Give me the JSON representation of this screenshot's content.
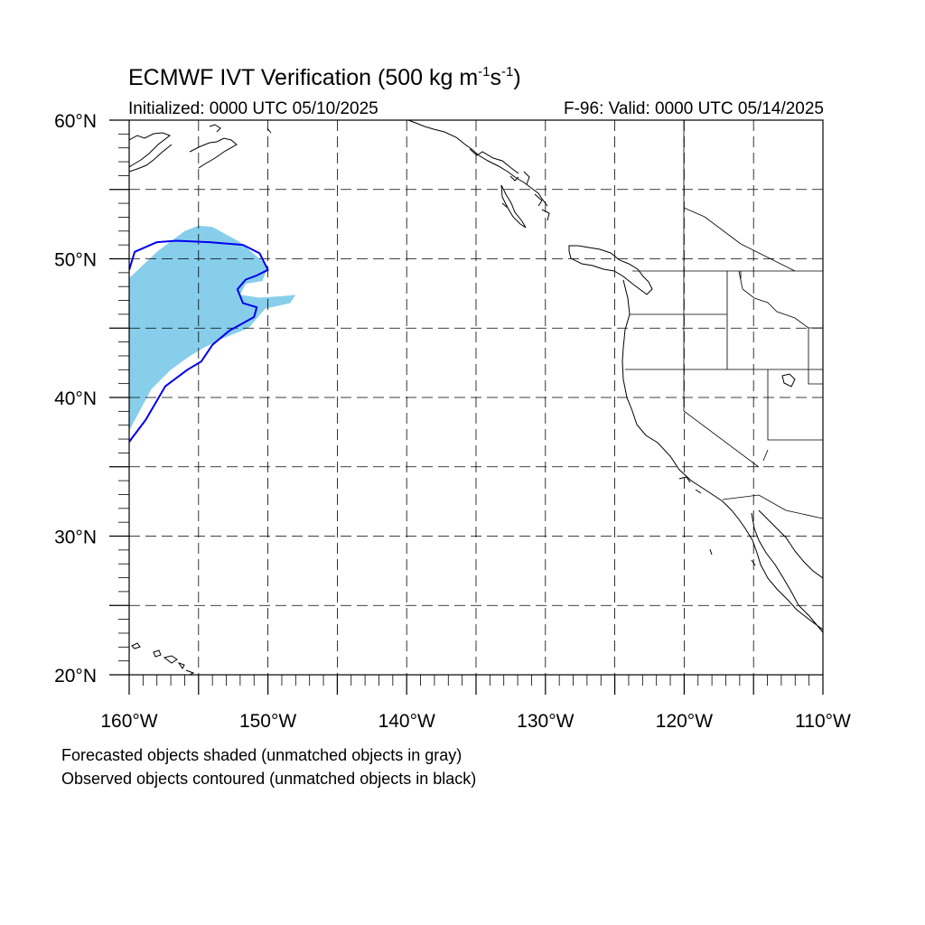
{
  "header": {
    "title_main": "ECMWF IVT Verification (500 kg m",
    "title_exp1": "-1",
    "title_mid": "s",
    "title_exp2": "-1",
    "title_end": ")",
    "initialized": "Initialized: 0000 UTC 05/10/2025",
    "valid": "F-96: Valid: 0000 UTC 05/14/2025"
  },
  "map": {
    "projection": "cylindrical-equidistant",
    "lon_range": [
      -160,
      -110
    ],
    "lat_range": [
      20,
      60
    ],
    "grid": "dashed every 5 degrees",
    "lat_labels": [
      "60°N",
      "50°N",
      "40°N",
      "30°N",
      "20°N"
    ],
    "lon_labels": [
      "160°W",
      "150°W",
      "140°W",
      "130°W",
      "120°W",
      "110°W"
    ],
    "forecast_color": "#87ceeb",
    "observed_color": "#0000ee",
    "forecast_object": [
      [
        -160,
        48.6
      ],
      [
        -158,
        50.5
      ],
      [
        -156,
        52
      ],
      [
        -155,
        52.4
      ],
      [
        -154,
        52.3
      ],
      [
        -152,
        51.2
      ],
      [
        -150.6,
        50
      ],
      [
        -150,
        49.5
      ],
      [
        -150.4,
        48.4
      ],
      [
        -151.6,
        48.2
      ],
      [
        -152,
        47.4
      ],
      [
        -150.6,
        47.2
      ],
      [
        -149,
        47.3
      ],
      [
        -148,
        47.4
      ],
      [
        -148.4,
        46.8
      ],
      [
        -150.2,
        46.4
      ],
      [
        -151.4,
        45
      ],
      [
        -153.4,
        44.2
      ],
      [
        -154.6,
        43.6
      ],
      [
        -155.6,
        43
      ],
      [
        -157,
        42
      ],
      [
        -158.4,
        40.6
      ],
      [
        -160,
        37.6
      ]
    ],
    "observed_object": [
      [
        -160,
        49.2
      ],
      [
        -159.6,
        50.5
      ],
      [
        -158,
        51.2
      ],
      [
        -156.6,
        51.3
      ],
      [
        -154.2,
        51.2
      ],
      [
        -151.8,
        51
      ],
      [
        -150.6,
        50.4
      ],
      [
        -150.2,
        49.6
      ],
      [
        -150,
        49.2
      ],
      [
        -150.8,
        48.8
      ],
      [
        -151.6,
        48.5
      ],
      [
        -152.2,
        47.8
      ],
      [
        -151.8,
        46.8
      ],
      [
        -150.8,
        46.5
      ],
      [
        -151,
        45.8
      ],
      [
        -152.8,
        44.8
      ],
      [
        -154,
        43.8
      ],
      [
        -154.8,
        42.6
      ],
      [
        -155.8,
        42
      ],
      [
        -157.4,
        40.8
      ],
      [
        -158.8,
        38.4
      ],
      [
        -160,
        36.8
      ]
    ]
  },
  "captions": {
    "line1": "Forecasted objects shaded (unmatched objects in gray)",
    "line2": "Observed objects contoured (unmatched objects in black)"
  }
}
